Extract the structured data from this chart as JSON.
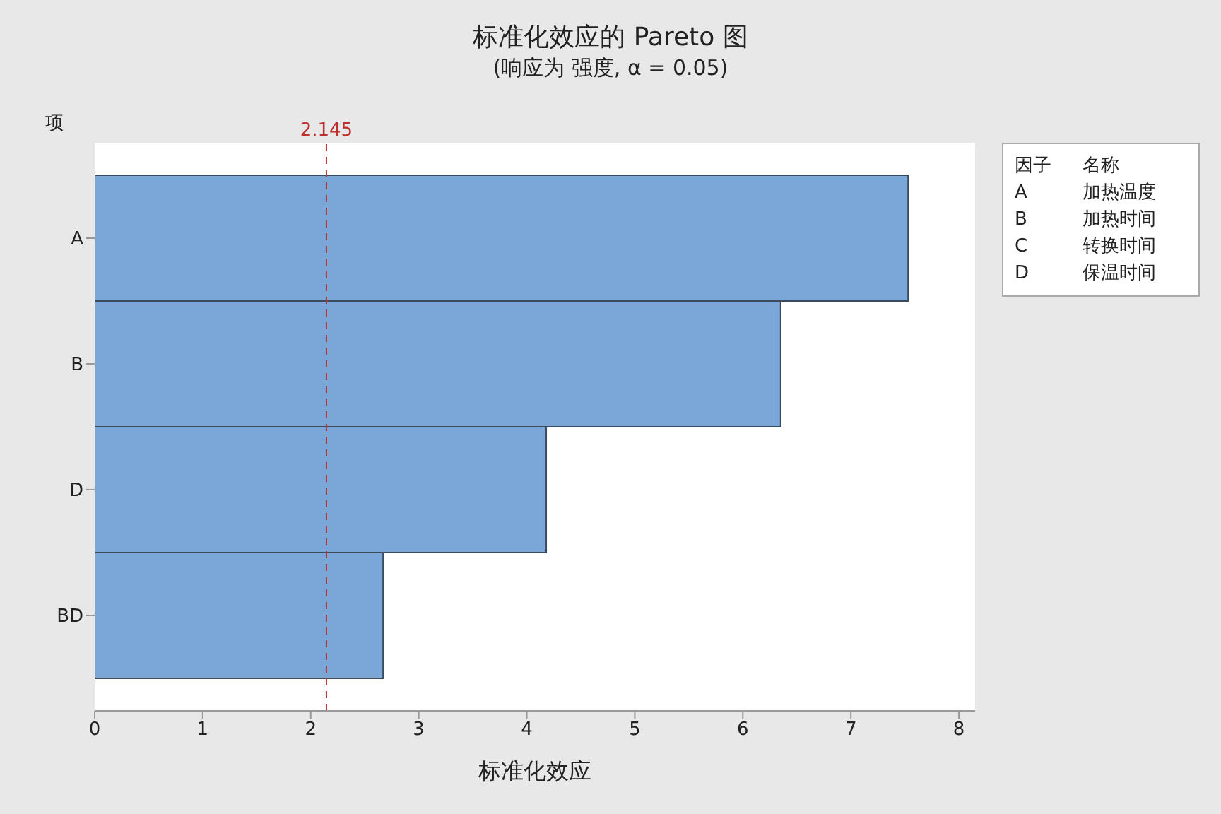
{
  "chart_data": {
    "type": "bar",
    "orientation": "horizontal",
    "title": "标准化效应的 Pareto 图",
    "subtitle": "(响应为 强度, α = 0.05)",
    "xlabel": "标准化效应",
    "ylabel": "项",
    "categories": [
      "A",
      "B",
      "D",
      "BD"
    ],
    "values": [
      7.53,
      6.35,
      4.18,
      2.67
    ],
    "color": "#7ba7d8",
    "xlim": [
      0,
      8.15
    ],
    "xticks": [
      0,
      1,
      2,
      3,
      4,
      5,
      6,
      7,
      8
    ],
    "ref_lines": [
      {
        "axis": "x",
        "value": 2.145,
        "label": "2.145",
        "color": "#c0302a",
        "line_style": "dashed"
      }
    ],
    "annotations": [
      "因子",
      "名称",
      "A",
      "加热温度",
      "B",
      "加热时间",
      "C",
      "转换时间",
      "D",
      "保温时间"
    ]
  }
}
